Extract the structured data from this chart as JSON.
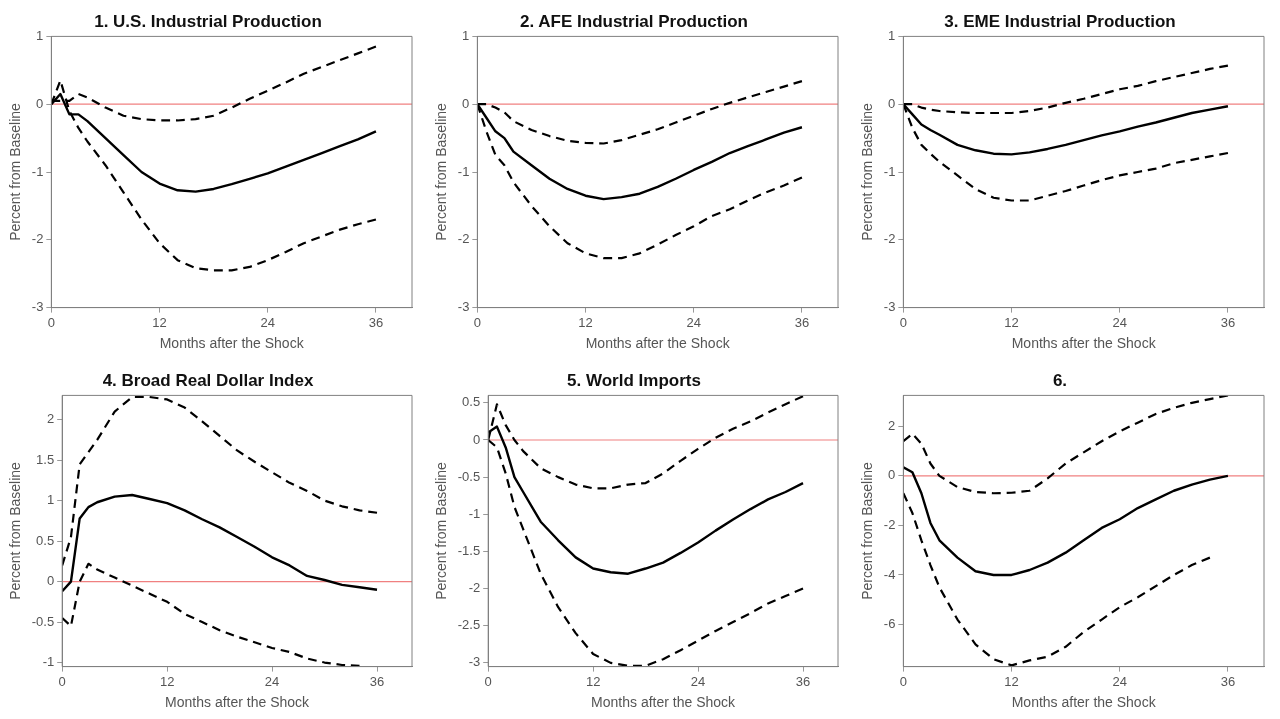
{
  "chart_data": [
    {
      "type": "line",
      "title": "1. U.S. Industrial Production",
      "xlabel": "Months after the Shock",
      "ylabel": "Percent from Baseline",
      "x": [
        0,
        1,
        2,
        3,
        4,
        6,
        8,
        10,
        12,
        14,
        16,
        18,
        20,
        22,
        24,
        26,
        28,
        30,
        32,
        34,
        36
      ],
      "xlim": [
        0,
        40
      ],
      "xticks": [
        0,
        12,
        24,
        36
      ],
      "ylim": [
        -3,
        1
      ],
      "yticks": [
        -3,
        -2,
        -1,
        0,
        1
      ],
      "grid": false,
      "legend": false,
      "marker": "none",
      "series": [
        {
          "color": "#000000",
          "line_style": "solid",
          "values": [
            0,
            0.15,
            -0.15,
            -0.15,
            -0.25,
            -0.5,
            -0.75,
            -1.0,
            -1.17,
            -1.27,
            -1.29,
            -1.25,
            -1.18,
            -1.1,
            -1.02,
            -0.92,
            -0.82,
            -0.72,
            -0.62,
            -0.52,
            -0.4
          ]
        },
        {
          "color": "#000000",
          "line_style": "dashed",
          "values": [
            0.05,
            0.05,
            0.05,
            0.15,
            0.1,
            -0.05,
            -0.17,
            -0.22,
            -0.24,
            -0.24,
            -0.22,
            -0.17,
            -0.05,
            0.08,
            0.2,
            0.32,
            0.45,
            0.55,
            0.65,
            0.75,
            0.85
          ]
        },
        {
          "color": "#000000",
          "line_style": "dashed",
          "values": [
            0,
            0.35,
            -0.1,
            -0.35,
            -0.55,
            -0.9,
            -1.3,
            -1.7,
            -2.05,
            -2.3,
            -2.42,
            -2.45,
            -2.45,
            -2.4,
            -2.3,
            -2.18,
            -2.05,
            -1.95,
            -1.85,
            -1.77,
            -1.7
          ]
        }
      ],
      "ref_lines": [
        {
          "axis": "y",
          "value": 0,
          "color": "#f08080"
        }
      ]
    },
    {
      "type": "line",
      "title": "2. AFE Industrial Production",
      "xlabel": "Months after the Shock",
      "ylabel": "Percent from Baseline",
      "x": [
        0,
        1,
        2,
        3,
        4,
        6,
        8,
        10,
        12,
        14,
        16,
        18,
        20,
        22,
        24,
        26,
        28,
        30,
        32,
        34,
        36
      ],
      "xlim": [
        0,
        40
      ],
      "xticks": [
        0,
        12,
        24,
        36
      ],
      "ylim": [
        -3,
        1
      ],
      "yticks": [
        -3,
        -2,
        -1,
        0,
        1
      ],
      "grid": false,
      "legend": false,
      "marker": "none",
      "series": [
        {
          "color": "#000000",
          "line_style": "solid",
          "values": [
            0,
            -0.2,
            -0.4,
            -0.5,
            -0.7,
            -0.9,
            -1.1,
            -1.25,
            -1.35,
            -1.4,
            -1.37,
            -1.32,
            -1.22,
            -1.1,
            -0.97,
            -0.85,
            -0.72,
            -0.62,
            -0.52,
            -0.42,
            -0.34
          ]
        },
        {
          "color": "#000000",
          "line_style": "dashed",
          "values": [
            0,
            0,
            -0.05,
            -0.12,
            -0.25,
            -0.38,
            -0.47,
            -0.54,
            -0.57,
            -0.58,
            -0.53,
            -0.45,
            -0.37,
            -0.27,
            -0.17,
            -0.07,
            0.02,
            0.1,
            0.18,
            0.26,
            0.34
          ]
        },
        {
          "color": "#000000",
          "line_style": "dashed",
          "values": [
            0,
            -0.4,
            -0.75,
            -0.9,
            -1.15,
            -1.5,
            -1.8,
            -2.05,
            -2.2,
            -2.27,
            -2.27,
            -2.2,
            -2.07,
            -1.93,
            -1.8,
            -1.65,
            -1.55,
            -1.42,
            -1.3,
            -1.2,
            -1.08
          ]
        }
      ],
      "ref_lines": [
        {
          "axis": "y",
          "value": 0,
          "color": "#f08080"
        }
      ]
    },
    {
      "type": "line",
      "title": "3. EME Industrial Production",
      "xlabel": "Months after the Shock",
      "ylabel": "Percent from Baseline",
      "x": [
        0,
        1,
        2,
        3,
        4,
        6,
        8,
        10,
        12,
        14,
        16,
        18,
        20,
        22,
        24,
        26,
        28,
        30,
        32,
        34,
        36
      ],
      "xlim": [
        0,
        40
      ],
      "xticks": [
        0,
        12,
        24,
        36
      ],
      "ylim": [
        -3,
        1
      ],
      "yticks": [
        -3,
        -2,
        -1,
        0,
        1
      ],
      "grid": false,
      "legend": false,
      "marker": "none",
      "series": [
        {
          "color": "#000000",
          "line_style": "solid",
          "values": [
            0,
            -0.15,
            -0.3,
            -0.38,
            -0.45,
            -0.6,
            -0.68,
            -0.73,
            -0.74,
            -0.71,
            -0.66,
            -0.6,
            -0.53,
            -0.46,
            -0.4,
            -0.33,
            -0.27,
            -0.2,
            -0.13,
            -0.08,
            -0.03
          ]
        },
        {
          "color": "#000000",
          "line_style": "dashed",
          "values": [
            0,
            0,
            -0.05,
            -0.08,
            -0.1,
            -0.12,
            -0.13,
            -0.13,
            -0.13,
            -0.1,
            -0.05,
            0.02,
            0.08,
            0.15,
            0.22,
            0.27,
            0.34,
            0.4,
            0.46,
            0.52,
            0.57
          ]
        },
        {
          "color": "#000000",
          "line_style": "dashed",
          "values": [
            0,
            -0.35,
            -0.6,
            -0.73,
            -0.85,
            -1.05,
            -1.25,
            -1.38,
            -1.42,
            -1.42,
            -1.35,
            -1.28,
            -1.2,
            -1.12,
            -1.05,
            -1.0,
            -0.95,
            -0.87,
            -0.82,
            -0.77,
            -0.72
          ]
        }
      ],
      "ref_lines": [
        {
          "axis": "y",
          "value": 0,
          "color": "#f08080"
        }
      ]
    },
    {
      "type": "line",
      "title": "4. Broad Real Dollar Index",
      "xlabel": "Months after the Shock",
      "ylabel": "Percent from Baseline",
      "x": [
        0,
        1,
        2,
        3,
        4,
        6,
        8,
        10,
        12,
        14,
        16,
        18,
        20,
        22,
        24,
        26,
        28,
        30,
        32,
        34,
        36
      ],
      "xlim": [
        0,
        40
      ],
      "xticks": [
        0,
        12,
        24,
        36
      ],
      "ylim": [
        -1.05,
        2.3
      ],
      "yticks": [
        -1,
        -0.5,
        0,
        0.5,
        1,
        1.5,
        2
      ],
      "grid": false,
      "legend": false,
      "marker": "none",
      "series": [
        {
          "color": "#000000",
          "line_style": "solid",
          "values": [
            -0.12,
            0.0,
            0.78,
            0.92,
            0.98,
            1.05,
            1.07,
            1.02,
            0.97,
            0.88,
            0.77,
            0.67,
            0.55,
            0.43,
            0.3,
            0.2,
            0.07,
            0.02,
            -0.04,
            -0.07,
            -0.1
          ]
        },
        {
          "color": "#000000",
          "line_style": "dashed",
          "values": [
            0.2,
            0.55,
            1.45,
            1.6,
            1.75,
            2.1,
            2.28,
            2.28,
            2.25,
            2.15,
            1.98,
            1.8,
            1.62,
            1.48,
            1.35,
            1.22,
            1.12,
            1.0,
            0.93,
            0.88,
            0.85
          ]
        },
        {
          "color": "#000000",
          "line_style": "dashed",
          "values": [
            -0.45,
            -0.55,
            0.0,
            0.22,
            0.15,
            0.05,
            -0.05,
            -0.15,
            -0.25,
            -0.4,
            -0.5,
            -0.6,
            -0.68,
            -0.75,
            -0.82,
            -0.87,
            -0.95,
            -1.0,
            -1.03,
            -1.04,
            null
          ]
        }
      ],
      "ref_lines": [
        {
          "axis": "y",
          "value": 0,
          "color": "#f08080"
        }
      ]
    },
    {
      "type": "line",
      "title": "5. World Imports",
      "xlabel": "Months after the Shock",
      "ylabel": "Percent from Baseline",
      "x": [
        0,
        1,
        2,
        3,
        4,
        6,
        8,
        10,
        12,
        14,
        16,
        18,
        20,
        22,
        24,
        26,
        28,
        30,
        32,
        34,
        36
      ],
      "xlim": [
        0,
        40
      ],
      "xticks": [
        0,
        12,
        24,
        36
      ],
      "ylim": [
        -3.05,
        0.6
      ],
      "yticks": [
        -3,
        -2.5,
        -2,
        -1.5,
        -1,
        -0.5,
        0,
        0.5
      ],
      "grid": false,
      "legend": false,
      "marker": "none",
      "series": [
        {
          "color": "#000000",
          "line_style": "solid",
          "values": [
            0.1,
            0.18,
            -0.1,
            -0.5,
            -0.7,
            -1.1,
            -1.35,
            -1.58,
            -1.73,
            -1.78,
            -1.8,
            -1.73,
            -1.65,
            -1.52,
            -1.38,
            -1.22,
            -1.07,
            -0.93,
            -0.8,
            -0.7,
            -0.58
          ]
        },
        {
          "color": "#000000",
          "line_style": "dashed",
          "values": [
            0.0,
            0.48,
            0.2,
            0.0,
            -0.15,
            -0.38,
            -0.5,
            -0.6,
            -0.65,
            -0.65,
            -0.6,
            -0.58,
            -0.45,
            -0.28,
            -0.12,
            0.03,
            0.15,
            0.25,
            0.37,
            0.48,
            0.59
          ]
        },
        {
          "color": "#000000",
          "line_style": "dashed",
          "values": [
            0.0,
            -0.1,
            -0.45,
            -0.9,
            -1.2,
            -1.8,
            -2.25,
            -2.6,
            -2.88,
            -3.0,
            -3.04,
            -3.04,
            -2.95,
            -2.83,
            -2.7,
            -2.57,
            -2.45,
            -2.33,
            -2.2,
            -2.1,
            -2.0
          ]
        }
      ],
      "ref_lines": [
        {
          "axis": "y",
          "value": 0,
          "color": "#f08080"
        }
      ]
    },
    {
      "type": "line",
      "title": "6.",
      "xlabel": "Months after the Shock",
      "ylabel": "Percent from Baseline",
      "x": [
        0,
        1,
        2,
        3,
        4,
        6,
        8,
        10,
        12,
        14,
        16,
        18,
        20,
        22,
        24,
        26,
        28,
        30,
        32,
        34,
        36
      ],
      "xlim": [
        0,
        40
      ],
      "xticks": [
        0,
        12,
        24,
        36
      ],
      "ylim": [
        -7.7,
        3.25
      ],
      "yticks": [
        -6,
        -4,
        -2,
        0,
        2
      ],
      "grid": false,
      "legend": false,
      "marker": "none",
      "series": [
        {
          "color": "#000000",
          "line_style": "solid",
          "values": [
            0.35,
            0.15,
            -0.7,
            -1.9,
            -2.6,
            -3.3,
            -3.85,
            -4.0,
            -4.0,
            -3.8,
            -3.5,
            -3.1,
            -2.6,
            -2.1,
            -1.75,
            -1.3,
            -0.95,
            -0.6,
            -0.35,
            -0.15,
            0.0
          ]
        },
        {
          "color": "#000000",
          "line_style": "dashed",
          "values": [
            1.4,
            1.7,
            1.3,
            0.5,
            0,
            -0.45,
            -0.65,
            -0.7,
            -0.68,
            -0.6,
            -0.1,
            0.5,
            0.95,
            1.4,
            1.8,
            2.15,
            2.5,
            2.75,
            2.95,
            3.1,
            3.25
          ]
        },
        {
          "color": "#000000",
          "line_style": "dashed",
          "values": [
            -0.7,
            -1.5,
            -2.6,
            -3.6,
            -4.5,
            -5.8,
            -6.8,
            -7.4,
            -7.65,
            -7.45,
            -7.3,
            -6.9,
            -6.3,
            -5.8,
            -5.3,
            -4.9,
            -4.45,
            -4.0,
            -3.6,
            -3.3,
            null
          ]
        }
      ],
      "ref_lines": [
        {
          "axis": "y",
          "value": 0,
          "color": "#f08080"
        }
      ]
    }
  ]
}
